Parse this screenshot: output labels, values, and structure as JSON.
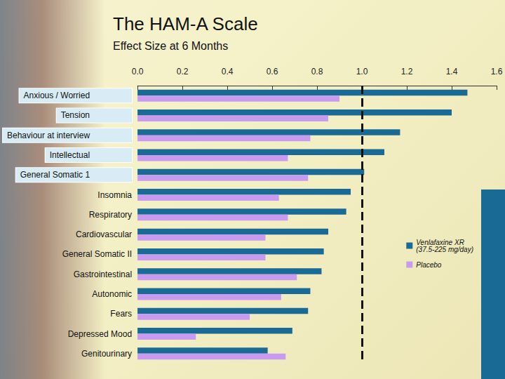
{
  "chart_data": {
    "type": "bar",
    "title": "The HAM-A Scale",
    "subtitle": "Effect Size at 6 Months",
    "orientation": "horizontal",
    "categories": [
      "Anxious / Worried",
      "Tension",
      "Behaviour at interview",
      "Intellectual",
      "General Somatic 1",
      "Insomnia",
      "Respiratory",
      "Cardiovascular",
      "General Somatic II",
      "Gastrointestinal",
      "Autonomic",
      "Fears",
      "Depressed Mood",
      "Genitourinary"
    ],
    "series": [
      {
        "name": "Venlafaxine XR (37.5-225 mg/day)",
        "color": "#1a6a96",
        "values": [
          1.47,
          1.4,
          1.17,
          1.1,
          1.01,
          0.95,
          0.93,
          0.85,
          0.83,
          0.82,
          0.77,
          0.76,
          0.69,
          0.58
        ]
      },
      {
        "name": "Placebo",
        "color": "#c89af0",
        "values": [
          0.9,
          0.85,
          0.77,
          0.67,
          0.76,
          0.63,
          0.67,
          0.57,
          0.57,
          0.71,
          0.64,
          0.5,
          0.26,
          0.66
        ]
      }
    ],
    "xlim": [
      0,
      1.6
    ],
    "xticks": [
      {
        "value": 0,
        "label": "0.0"
      },
      0.2,
      0.4,
      0.6,
      0.8,
      {
        "value": 1,
        "label": "1.0"
      },
      1.2,
      1.4,
      1.6
    ],
    "reference_line": 1,
    "grid": false,
    "legend": "right"
  }
}
